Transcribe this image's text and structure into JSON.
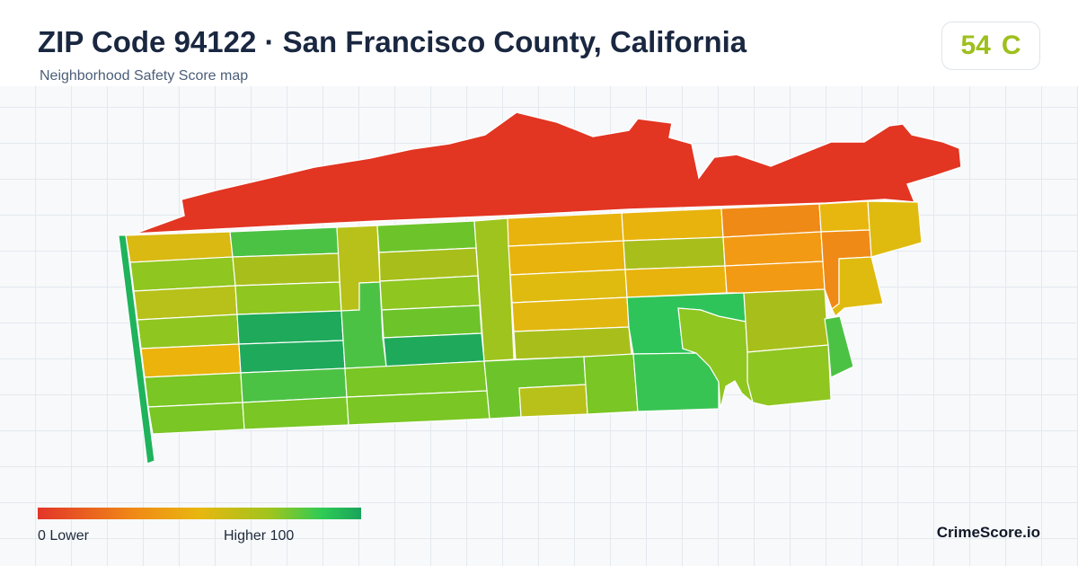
{
  "header": {
    "title": "ZIP Code 94122 · San Francisco County, California",
    "subtitle": "Neighborhood Safety Score map"
  },
  "score": {
    "value": "54",
    "grade": "C",
    "color": "#9ebf1c"
  },
  "legend": {
    "low_label": "0  Lower",
    "high_label": "Higher  100",
    "min": 0,
    "max": 100,
    "colors": [
      "#e3352a",
      "#f08a16",
      "#e8b70f",
      "#9fc41e",
      "#2ecb55",
      "#19a35b"
    ]
  },
  "brand": "CrimeScore.io",
  "map": {
    "region_icon": "choropleth-zip-area",
    "border_color": "#ffffff"
  }
}
